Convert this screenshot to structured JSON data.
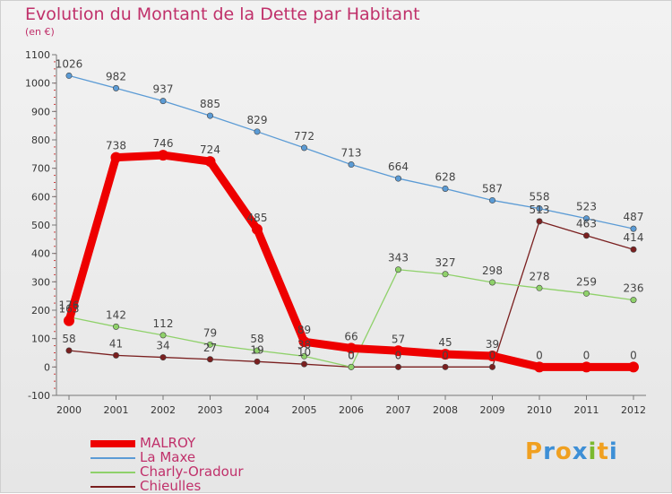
{
  "header": {
    "title": "Evolution du Montant de la Dette par Habitant",
    "subtitle": "(en €)"
  },
  "logo": {
    "letters": [
      "P",
      "r",
      "o",
      "x",
      "i",
      "t",
      "i"
    ],
    "colors": [
      "#f0a020",
      "#3d8fd6",
      "#f0a020",
      "#3d8fd6",
      "#7ab92f",
      "#f0a020",
      "#3d8fd6"
    ]
  },
  "chart_data": {
    "type": "line",
    "title": "Evolution du Montant de la Dette par Habitant",
    "ylabel": "(en €)",
    "x": [
      "2000",
      "2001",
      "2002",
      "2003",
      "2004",
      "2005",
      "2006",
      "2007",
      "2008",
      "2009",
      "2010",
      "2011",
      "2012"
    ],
    "ylim": [
      -100,
      1100
    ],
    "yticks": [
      -100,
      0,
      100,
      200,
      300,
      400,
      500,
      600,
      700,
      800,
      900,
      1000,
      1100
    ],
    "legend_position": "bottom-left",
    "grid": false,
    "series": [
      {
        "name": "MALROY",
        "color": "#ee0000",
        "values": [
          163,
          738,
          746,
          724,
          485,
          89,
          66,
          57,
          45,
          39,
          0,
          0,
          0
        ],
        "labels": [
          "163",
          "738",
          "746",
          "724",
          "485",
          "89",
          "66",
          "57",
          "45",
          "39",
          "0",
          "0",
          "0"
        ]
      },
      {
        "name": "La Maxe",
        "color": "#5b9bd5",
        "values": [
          1026,
          982,
          937,
          885,
          829,
          772,
          713,
          664,
          628,
          587,
          558,
          523,
          487
        ],
        "labels": [
          "1026",
          "982",
          "937",
          "885",
          "829",
          "772",
          "713",
          "664",
          "628",
          "587",
          "558",
          "523",
          "487"
        ]
      },
      {
        "name": "Charly-Oradour",
        "color": "#8fd16a",
        "values": [
          176,
          142,
          112,
          79,
          58,
          38,
          0,
          343,
          327,
          298,
          278,
          259,
          236
        ],
        "labels": [
          "176",
          "142",
          "112",
          "79",
          "58",
          "38",
          "0",
          "343",
          "327",
          "298",
          "278",
          "259",
          "236"
        ]
      },
      {
        "name": "Chieulles",
        "color": "#7a1f1f",
        "values": [
          58,
          41,
          34,
          27,
          19,
          10,
          0,
          0,
          0,
          0,
          513,
          463,
          414
        ],
        "labels": [
          "58",
          "41",
          "34",
          "27",
          "19",
          "10",
          "0",
          "0",
          "0",
          "0",
          "513",
          "463",
          "414"
        ]
      }
    ]
  }
}
